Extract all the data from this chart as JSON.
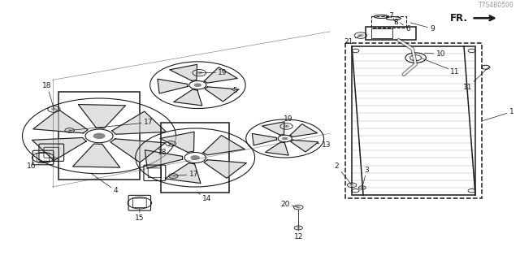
{
  "bg_color": "#ffffff",
  "line_color": "#1a1a1a",
  "fig_width": 6.4,
  "fig_height": 3.2,
  "dpi": 100,
  "diagram_code": "T7S4B0500",
  "fr_label": "FR."
}
